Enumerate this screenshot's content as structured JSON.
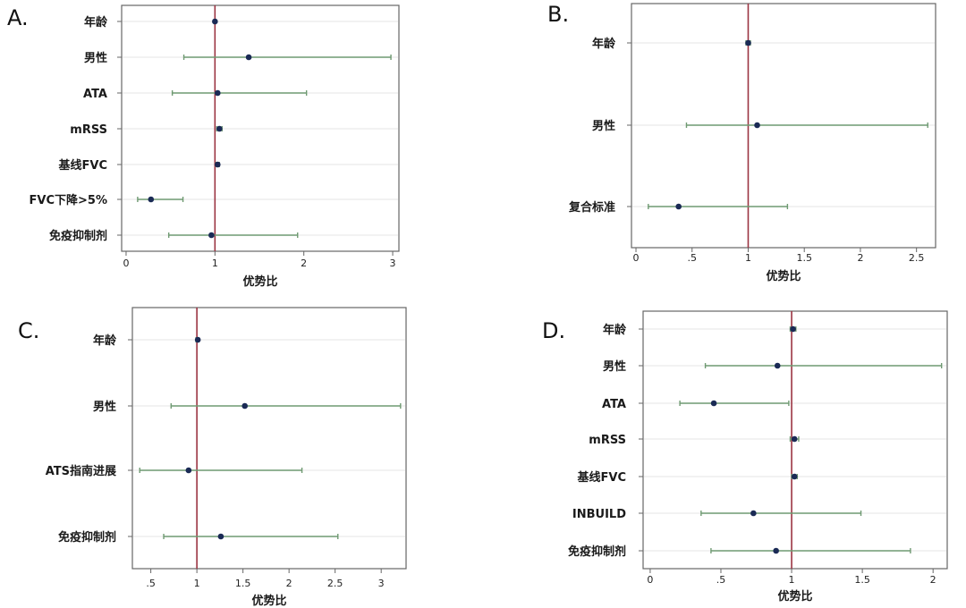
{
  "chart_data": [
    {
      "type": "forest",
      "panel": "A.",
      "xlabel": "优势比",
      "xlim": [
        -0.05,
        3.07
      ],
      "xticks": [
        0,
        1,
        2,
        3
      ],
      "xtick_labels": [
        "0",
        "1",
        "2",
        "3"
      ],
      "reference_line": 1,
      "categories": [
        "年龄",
        "男性",
        "ATA",
        "mRSS",
        "基线FVC",
        "FVC下降>5%",
        "免疫抑制剂"
      ],
      "estimates": [
        1.0,
        1.38,
        1.03,
        1.05,
        1.03,
        0.28,
        0.96
      ],
      "ci_low": [
        0.99,
        0.65,
        0.52,
        1.02,
        1.01,
        0.13,
        0.48
      ],
      "ci_high": [
        1.01,
        2.98,
        2.03,
        1.08,
        1.05,
        0.64,
        1.93
      ],
      "grid": true
    },
    {
      "type": "forest",
      "panel": "B.",
      "xlabel": "优势比",
      "xlim": [
        -0.04,
        2.67
      ],
      "xticks": [
        0,
        0.5,
        1,
        1.5,
        2,
        2.5
      ],
      "xtick_labels": [
        "0",
        ".5",
        "1",
        "1.5",
        "2",
        "2.5"
      ],
      "reference_line": 1,
      "categories": [
        "年龄",
        "男性",
        "复合标准"
      ],
      "estimates": [
        1.0,
        1.08,
        0.38
      ],
      "ci_low": [
        0.98,
        0.45,
        0.11
      ],
      "ci_high": [
        1.02,
        2.6,
        1.35
      ],
      "grid": true
    },
    {
      "type": "forest",
      "panel": "C.",
      "xlabel": "优势比",
      "xlim": [
        0.3,
        3.27
      ],
      "xticks": [
        0.5,
        1,
        1.5,
        2,
        2.5,
        3
      ],
      "xtick_labels": [
        ".5",
        "1",
        "1.5",
        "2",
        "2.5",
        "3"
      ],
      "reference_line": 1,
      "categories": [
        "年龄",
        "男性",
        "ATS指南进展",
        "免疫抑制剂"
      ],
      "estimates": [
        1.01,
        1.52,
        0.91,
        1.26
      ],
      "ci_low": [
        0.99,
        0.72,
        0.38,
        0.64
      ],
      "ci_high": [
        1.02,
        3.21,
        2.14,
        2.53
      ],
      "grid": true
    },
    {
      "type": "forest",
      "panel": "D.",
      "xlabel": "优势比",
      "xlim": [
        -0.05,
        2.1
      ],
      "xticks": [
        0,
        0.5,
        1,
        1.5,
        2
      ],
      "xtick_labels": [
        "0",
        ".5",
        "1",
        "1.5",
        "2"
      ],
      "reference_line": 1,
      "categories": [
        "年龄",
        "男性",
        "ATA",
        "mRSS",
        "基线FVC",
        "INBUILD",
        "免疫抑制剂"
      ],
      "estimates": [
        1.01,
        0.9,
        0.45,
        1.02,
        1.02,
        0.73,
        0.89
      ],
      "ci_low": [
        0.99,
        0.39,
        0.21,
        0.99,
        1.0,
        0.36,
        0.43
      ],
      "ci_high": [
        1.03,
        2.06,
        0.98,
        1.05,
        1.04,
        1.49,
        1.84
      ],
      "grid": true
    }
  ],
  "colors": {
    "ci_line": "#6f9a72",
    "ref_line": "#9b3442",
    "point": "#1a2a55",
    "grid": "#e4e4e4",
    "frame": "#666666"
  }
}
